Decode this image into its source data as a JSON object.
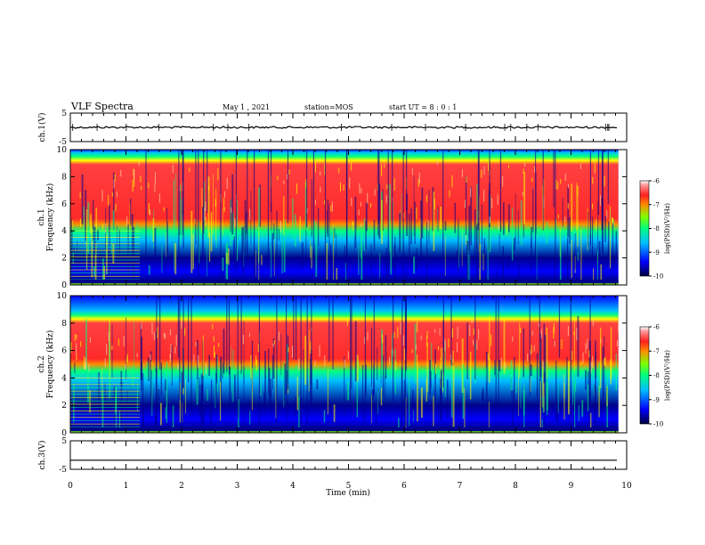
{
  "header": {
    "title": "VLF Spectra",
    "date": "May 1 , 2021",
    "station": "station=MOS",
    "start": "start UT =  8 : 0 : 1"
  },
  "colors": {
    "scale": [
      "#00008b",
      "#0000ff",
      "#00bfff",
      "#00ff7f",
      "#7fff00",
      "#ffff00",
      "#ff8c00",
      "#ff2a2a",
      "#ff4040"
    ]
  },
  "chart_data": [
    {
      "type": "line",
      "name": "ch1-voltage",
      "ylabel": "ch.1(V)",
      "ylim": [
        -5,
        5
      ],
      "yticks": [
        {
          "v": 5,
          "label": "5"
        },
        {
          "v": -5,
          "label": "-5"
        }
      ],
      "trace_level": 0
    },
    {
      "type": "heatmap",
      "name": "ch1-spectrogram",
      "ylabel": "ch.1\nFrequency (kHz)",
      "ylim": [
        0,
        10
      ],
      "yticks": [
        0,
        2,
        4,
        6,
        8,
        10
      ],
      "red_band_khz": [
        4.5,
        9.2
      ],
      "colorbar": {
        "label": "log(PSD)(V²/Hz)",
        "ticks": [
          "-6",
          "-7",
          "-8",
          "-9",
          "-10"
        ]
      }
    },
    {
      "type": "heatmap",
      "name": "ch2-spectrogram",
      "ylabel": "ch.2\nFrequency (kHz)",
      "ylim": [
        0,
        10
      ],
      "yticks": [
        0,
        2,
        4,
        6,
        8,
        10
      ],
      "red_band_khz": [
        5.0,
        8.3
      ],
      "colorbar": {
        "label": "log(PSD)(V²/Hz)",
        "ticks": [
          "-6",
          "-7",
          "-8",
          "-9",
          "-10"
        ]
      }
    },
    {
      "type": "line",
      "name": "ch3-voltage",
      "ylabel": "ch.3(V)",
      "ylim": [
        -5,
        5
      ],
      "yticks": [
        {
          "v": 5,
          "label": "5"
        },
        {
          "v": -5,
          "label": "-5"
        }
      ],
      "trace_level": -1.8
    }
  ],
  "xaxis": {
    "label": "Time (min)",
    "xlim": [
      0,
      10
    ],
    "ticks": [
      "0",
      "1",
      "2",
      "3",
      "4",
      "5",
      "6",
      "7",
      "8",
      "9",
      "10"
    ],
    "data_end": 9.85
  }
}
